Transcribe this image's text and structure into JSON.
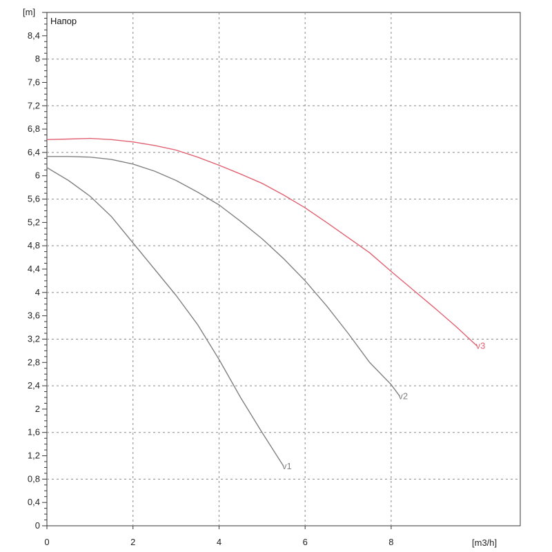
{
  "chart_data": {
    "type": "line",
    "title": "",
    "ylabel": "[m]",
    "xlabel": "[m3/h]",
    "legend": "Напор",
    "xlim": [
      0,
      11
    ],
    "ylim": [
      0,
      8.8
    ],
    "x_ticks": [
      "0",
      "2",
      "4",
      "6",
      "8"
    ],
    "y_ticks": [
      "0",
      "0,4",
      "0,8",
      "1,2",
      "1,6",
      "2",
      "2,4",
      "2,8",
      "3,2",
      "3,6",
      "4",
      "4,4",
      "4,8",
      "5,2",
      "5,6",
      "6",
      "6,4",
      "6,8",
      "7,2",
      "7,6",
      "8",
      "8,4"
    ],
    "grid": true,
    "series": [
      {
        "name": "v1",
        "color": "#808080",
        "x": [
          0,
          0.5,
          1,
          1.5,
          2,
          2.5,
          3,
          3.5,
          4,
          4.5,
          5,
          5.5
        ],
        "y": [
          6.14,
          5.92,
          5.65,
          5.3,
          4.85,
          4.4,
          3.95,
          3.45,
          2.85,
          2.2,
          1.6,
          1.02
        ]
      },
      {
        "name": "v2",
        "color": "#808080",
        "x": [
          0,
          0.5,
          1,
          1.5,
          2,
          2.5,
          3,
          3.5,
          4,
          4.5,
          5,
          5.5,
          6,
          6.5,
          7,
          7.5,
          8,
          8.2
        ],
        "y": [
          6.33,
          6.33,
          6.32,
          6.28,
          6.2,
          6.08,
          5.92,
          5.72,
          5.5,
          5.22,
          4.92,
          4.58,
          4.2,
          3.77,
          3.3,
          2.8,
          2.42,
          2.22
        ]
      },
      {
        "name": "v3",
        "color": "#e06070",
        "x": [
          0,
          0.5,
          1,
          1.5,
          2,
          2.5,
          3,
          3.5,
          4,
          4.5,
          5,
          5.5,
          6,
          6.5,
          7,
          7.5,
          8,
          8.5,
          9,
          9.5,
          10
        ],
        "y": [
          6.62,
          6.63,
          6.64,
          6.62,
          6.58,
          6.52,
          6.44,
          6.32,
          6.18,
          6.03,
          5.87,
          5.67,
          5.45,
          5.2,
          4.94,
          4.68,
          4.36,
          4.05,
          3.74,
          3.42,
          3.08
        ]
      }
    ]
  }
}
